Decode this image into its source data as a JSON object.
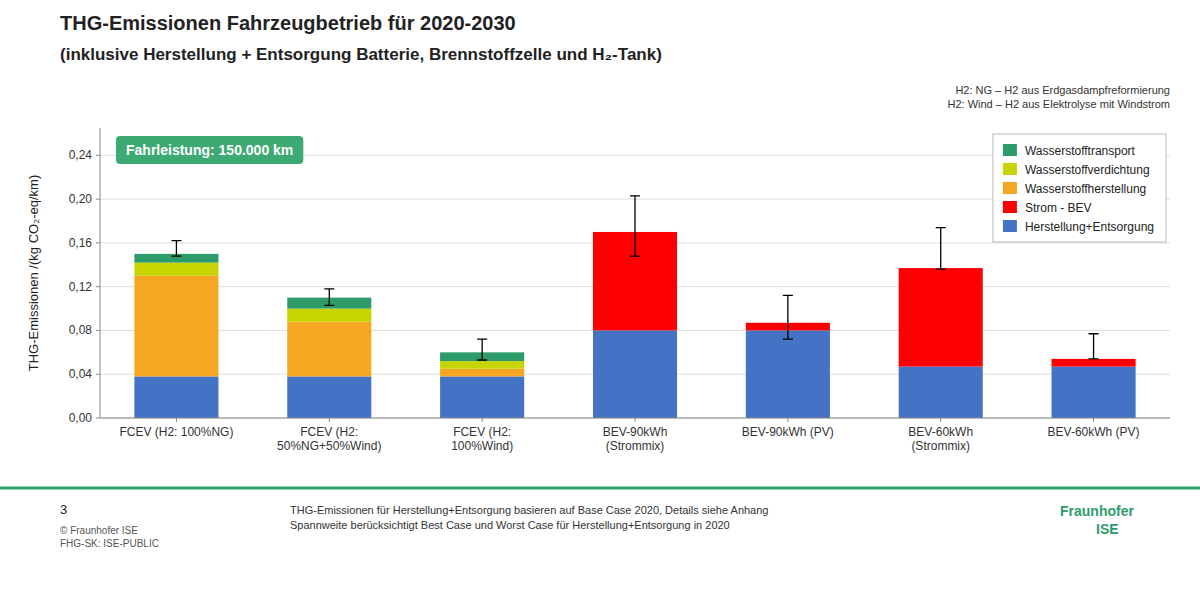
{
  "chart_data": {
    "type": "bar",
    "stacked": true,
    "title": "THG-Emissionen Fahrzeugbetrieb für 2020-2030",
    "subtitle": "(inklusive Herstellung + Entsorgung Batterie, Brennstoffzelle und H₂-Tank)",
    "ylabel": "THG-Emissionen /(kg CO₂-eq/km)",
    "categories": [
      "FCEV (H2: 100%NG)",
      "FCEV (H2:\n50%NG+50%Wind)",
      "FCEV (H2:\n100%Wind)",
      "BEV-90kWh\n(Strommix)",
      "BEV-90kWh (PV)",
      "BEV-60kWh\n(Strommix)",
      "BEV-60kWh (PV)"
    ],
    "series": [
      {
        "name": "Herstellung+Entsorgung",
        "color": "#4472C4",
        "values": [
          0.038,
          0.038,
          0.038,
          0.08,
          0.08,
          0.047,
          0.047
        ]
      },
      {
        "name": "Strom - BEV",
        "color": "#FF0000",
        "values": [
          0.0,
          0.0,
          0.0,
          0.09,
          0.007,
          0.09,
          0.007
        ]
      },
      {
        "name": "Wasserstoffherstellung",
        "color": "#F5A623",
        "values": [
          0.092,
          0.05,
          0.007,
          0.0,
          0.0,
          0.0,
          0.0
        ]
      },
      {
        "name": "Wasserstoffverdichtung",
        "color": "#C8D400",
        "values": [
          0.012,
          0.012,
          0.007,
          0.0,
          0.0,
          0.0,
          0.0
        ]
      },
      {
        "name": "Wasserstofftransport",
        "color": "#2E9B6B",
        "values": [
          0.008,
          0.01,
          0.008,
          0.0,
          0.0,
          0.0,
          0.0
        ]
      }
    ],
    "error_bars": {
      "center": [
        0.155,
        0.11,
        0.06,
        0.17,
        0.087,
        0.154,
        0.062
      ],
      "low": [
        0.007,
        0.007,
        0.007,
        0.022,
        0.015,
        0.018,
        0.008
      ],
      "high": [
        0.007,
        0.008,
        0.012,
        0.033,
        0.025,
        0.02,
        0.015
      ]
    },
    "ylim": [
      0,
      0.265
    ],
    "yticks": [
      {
        "value": 0.0,
        "label": "0,00"
      },
      {
        "value": 0.04,
        "label": "0,04"
      },
      {
        "value": 0.08,
        "label": "0,08"
      },
      {
        "value": 0.12,
        "label": "0,12"
      },
      {
        "value": 0.16,
        "label": "0,16"
      },
      {
        "value": 0.2,
        "label": "0,20"
      },
      {
        "value": 0.24,
        "label": "0,24"
      }
    ],
    "grid": true,
    "legend": "upper right",
    "annotations": [
      "Fahrleistung: 150.000 km",
      "H2: NG – H2 aus Erdgasdampfreformierung\nH2: Wind – H2 aus Elektrolyse mit Windstrom",
      "THG-Emissionen für Herstellung+Entsorgung basieren auf Base Case 2020, Details siehe Anhang\nSpannweite berücksichtigt Best Case und Worst Case für Herstellung+Entsorgung in 2020",
      "3",
      "© Fraunhofer ISE\nFHG-SK: ISE-PUBLIC",
      "Fraunhofer",
      "ISE"
    ]
  }
}
